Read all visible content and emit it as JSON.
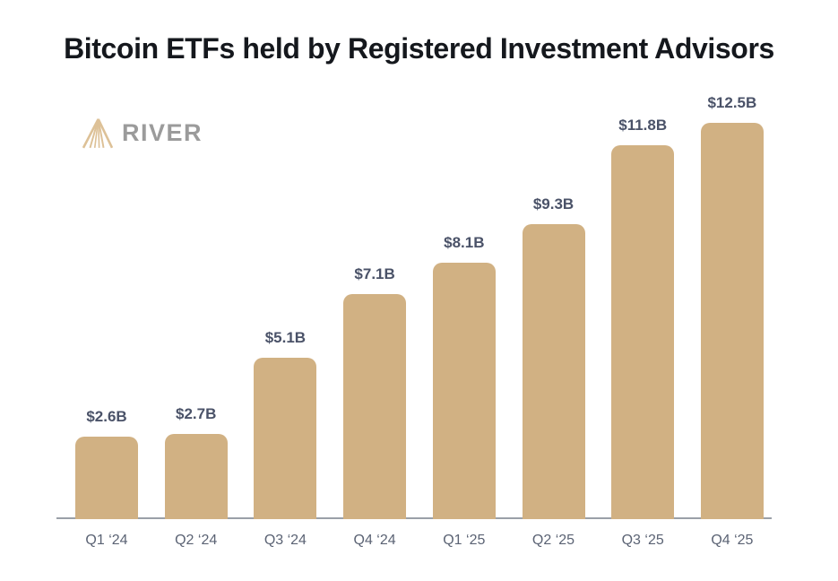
{
  "title": "Bitcoin ETFs held by Registered Investment Advisors",
  "logo": {
    "brand": "RIVER",
    "icon": "river-mountain-logo"
  },
  "colors": {
    "background": "#ffffff",
    "bar": "#d1b183",
    "title": "#15181d",
    "value_label": "#4a5268",
    "axis_label": "#5b6374",
    "axis_line": "#9aa0a8",
    "logo_text": "#9b9b9b",
    "logo_mark": "#ddc197"
  },
  "chart_data": {
    "type": "bar",
    "title": "Bitcoin ETFs held by Registered Investment Advisors",
    "categories": [
      "Q1 ‘24",
      "Q2 ‘24",
      "Q3 ‘24",
      "Q4 ‘24",
      "Q1 ‘25",
      "Q2 ‘25",
      "Q3 ‘25",
      "Q4 ‘25"
    ],
    "values": [
      2.6,
      2.7,
      5.1,
      7.1,
      8.1,
      9.3,
      11.8,
      12.5
    ],
    "value_labels": [
      "$2.6B",
      "$2.7B",
      "$5.1B",
      "$7.1B",
      "$8.1B",
      "$9.3B",
      "$11.8B",
      "$12.5B"
    ],
    "xlabel": "",
    "ylabel": "",
    "ylim": [
      0,
      13
    ],
    "grid": false,
    "legend": false,
    "bar_color": "#d1b183"
  }
}
